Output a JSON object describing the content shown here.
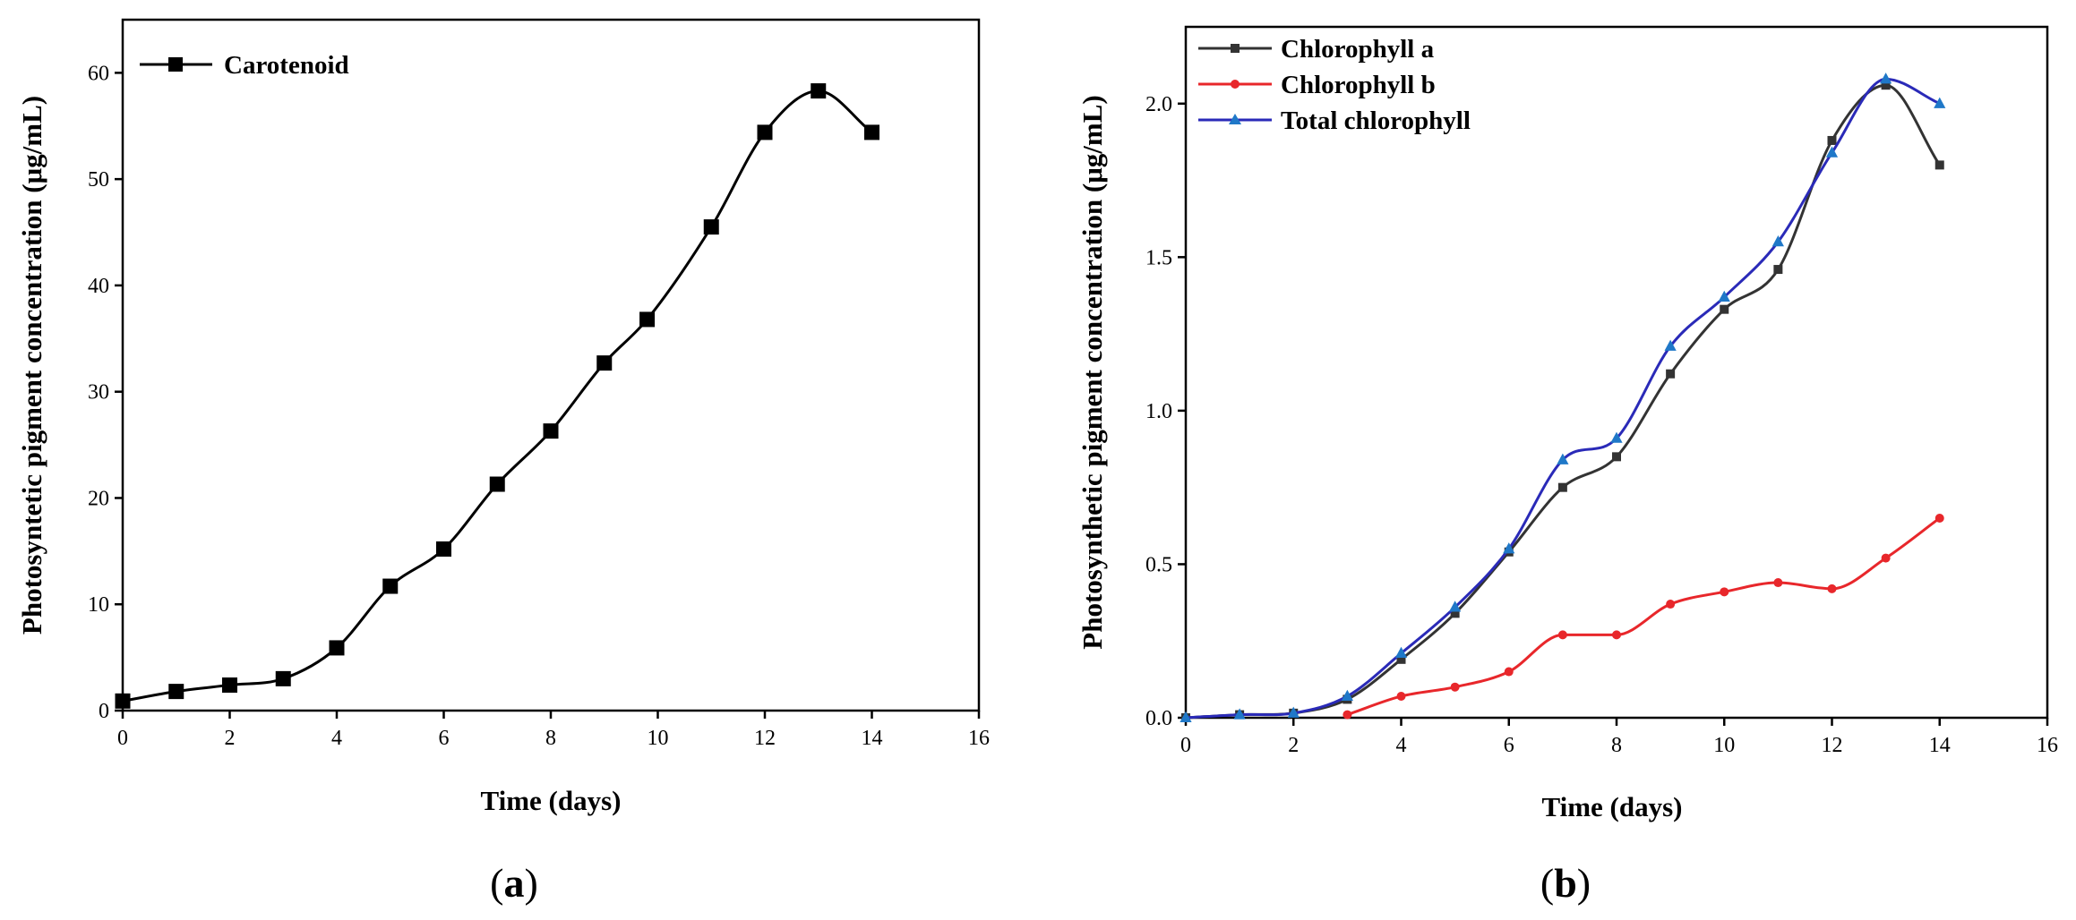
{
  "chart_data": [
    {
      "type": "line",
      "panel_label": "(a)",
      "panel_letter": "a",
      "xlabel": "Time (days)",
      "ylabel": "Photosyntetic pigment concentration (μg/mL)",
      "xlim": [
        0,
        16
      ],
      "ylim": [
        0,
        65
      ],
      "xticks": [
        0,
        2,
        4,
        6,
        8,
        10,
        12,
        14,
        16
      ],
      "yticks": [
        0,
        10,
        20,
        30,
        40,
        50,
        60
      ],
      "legend_position": "top-left",
      "series": [
        {
          "name": "Carotenoid",
          "color": "#000000",
          "marker": "square",
          "x": [
            0,
            1,
            2,
            3,
            4,
            5,
            6,
            7,
            8,
            9,
            9.8,
            11,
            12,
            13,
            14
          ],
          "y": [
            0.9,
            1.8,
            2.4,
            3.0,
            5.9,
            11.7,
            15.2,
            21.3,
            26.3,
            32.7,
            36.8,
            45.5,
            54.4,
            58.3,
            54.4
          ]
        }
      ]
    },
    {
      "type": "line",
      "panel_label": "(b)",
      "panel_letter": "b",
      "xlabel": "Time (days)",
      "ylabel": "Photosynthetic pigment concentration (μg/mL)",
      "xlim": [
        0,
        16
      ],
      "ylim": [
        0,
        2.25
      ],
      "xticks": [
        0,
        2,
        4,
        6,
        8,
        10,
        12,
        14,
        16
      ],
      "yticks": [
        0.0,
        0.5,
        1.0,
        1.5,
        2.0
      ],
      "ytick_labels": [
        "0.0",
        "0.5",
        "1.0",
        "1.5",
        "2.0"
      ],
      "legend_position": "top-left",
      "series": [
        {
          "name": "Chlorophyll a",
          "color": "#333333",
          "marker": "square",
          "x": [
            0,
            1,
            2,
            3,
            4,
            5,
            6,
            7,
            8,
            9,
            10,
            11,
            12,
            13,
            14
          ],
          "y": [
            0.0,
            0.01,
            0.015,
            0.06,
            0.19,
            0.34,
            0.54,
            0.75,
            0.85,
            1.12,
            1.33,
            1.46,
            1.88,
            2.06,
            1.8
          ]
        },
        {
          "name": "Chlorophyll b",
          "color": "#e8272b",
          "marker": "circle",
          "x": [
            3,
            4,
            5,
            6,
            7,
            8,
            9,
            10,
            11,
            12,
            13,
            14
          ],
          "y": [
            0.01,
            0.07,
            0.1,
            0.15,
            0.27,
            0.27,
            0.37,
            0.41,
            0.44,
            0.42,
            0.52,
            0.65
          ]
        },
        {
          "name": "Total chlorophyll",
          "color": "#2a2ab8",
          "marker": "triangle",
          "marker_color": "#1f78c8",
          "x": [
            0,
            1,
            2,
            3,
            4,
            5,
            6,
            7,
            8,
            9,
            10,
            11,
            12,
            13,
            14
          ],
          "y": [
            0.0,
            0.01,
            0.015,
            0.07,
            0.21,
            0.36,
            0.55,
            0.84,
            0.91,
            1.21,
            1.37,
            1.55,
            1.84,
            2.08,
            2.0
          ]
        }
      ]
    }
  ]
}
